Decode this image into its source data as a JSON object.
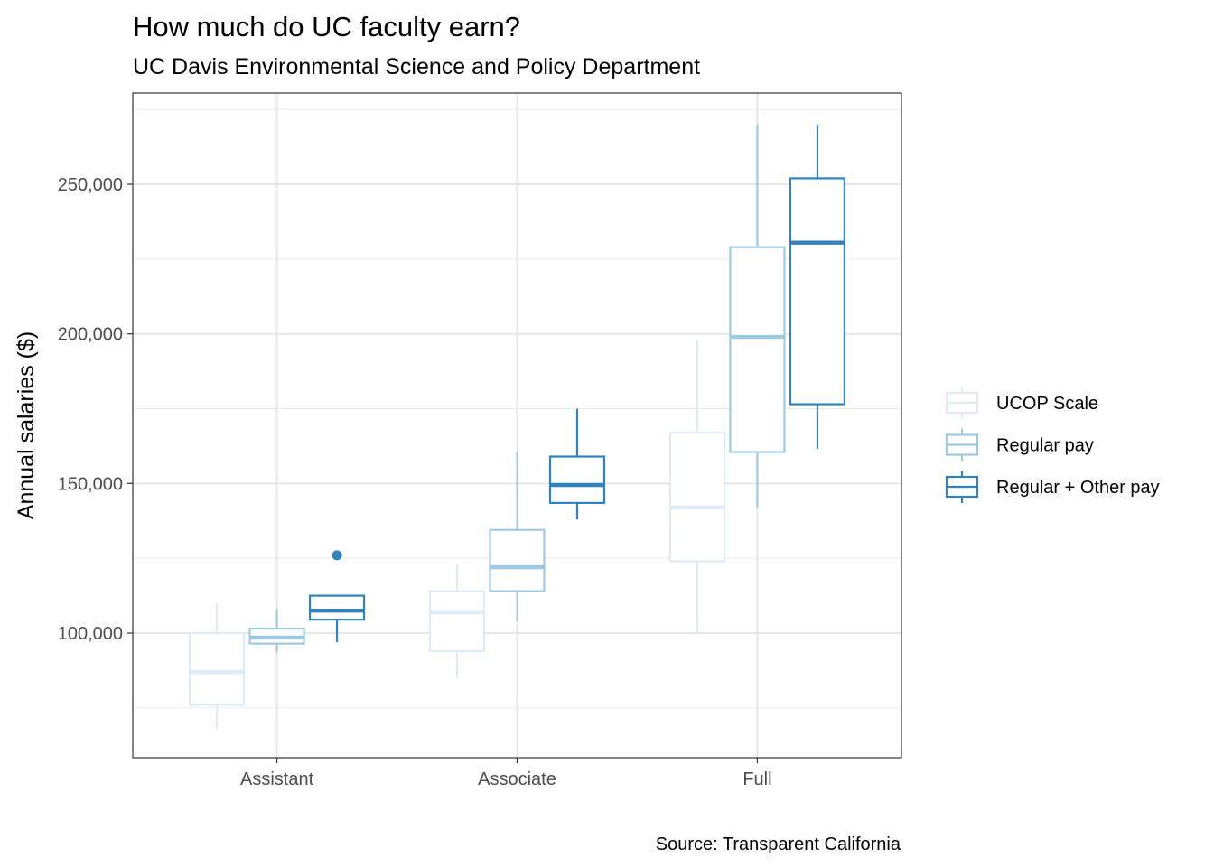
{
  "chart_data": {
    "type": "boxplot",
    "title": "How much do UC faculty earn?",
    "subtitle": "UC Davis Environmental Science and Policy Department",
    "xlabel": "",
    "ylabel": "Annual salaries ($)",
    "caption": "Source: Transparent California",
    "categories": [
      "Assistant",
      "Associate",
      "Full"
    ],
    "y_ticks": [
      100000,
      150000,
      200000,
      250000
    ],
    "y_tick_labels": [
      "100,000",
      "150,000",
      "200,000",
      "250,000"
    ],
    "ylim": [
      62000,
      278000
    ],
    "grid": true,
    "legend_position": "right",
    "series": [
      {
        "name": "UCOP Scale",
        "color": "#deebf7",
        "boxes": [
          {
            "category": "Assistant",
            "lower": 68000,
            "q1": 76000,
            "median": 87000,
            "q3": 100000,
            "upper": 110000,
            "outliers": []
          },
          {
            "category": "Associate",
            "lower": 85000,
            "q1": 94000,
            "median": 107000,
            "q3": 114000,
            "upper": 123000,
            "outliers": []
          },
          {
            "category": "Full",
            "lower": 100000,
            "q1": 124000,
            "median": 142000,
            "q3": 167000,
            "upper": 198000,
            "outliers": []
          }
        ]
      },
      {
        "name": "Regular pay",
        "color": "#9ecae1",
        "boxes": [
          {
            "category": "Assistant",
            "lower": 93500,
            "q1": 96500,
            "median": 98500,
            "q3": 101500,
            "upper": 108000,
            "outliers": []
          },
          {
            "category": "Associate",
            "lower": 104000,
            "q1": 114000,
            "median": 122000,
            "q3": 134500,
            "upper": 160500,
            "outliers": []
          },
          {
            "category": "Full",
            "lower": 142000,
            "q1": 160500,
            "median": 199000,
            "q3": 229000,
            "upper": 270000,
            "outliers": []
          }
        ]
      },
      {
        "name": "Regular + Other pay",
        "color": "#3182bd",
        "boxes": [
          {
            "category": "Assistant",
            "lower": 97000,
            "q1": 104500,
            "median": 107500,
            "q3": 112500,
            "upper": 112500,
            "outliers": [
              126000
            ]
          },
          {
            "category": "Associate",
            "lower": 138000,
            "q1": 143500,
            "median": 149500,
            "q3": 159000,
            "upper": 175000,
            "outliers": []
          },
          {
            "category": "Full",
            "lower": 161500,
            "q1": 176500,
            "median": 230500,
            "q3": 252000,
            "upper": 270000,
            "outliers": []
          }
        ]
      }
    ]
  }
}
